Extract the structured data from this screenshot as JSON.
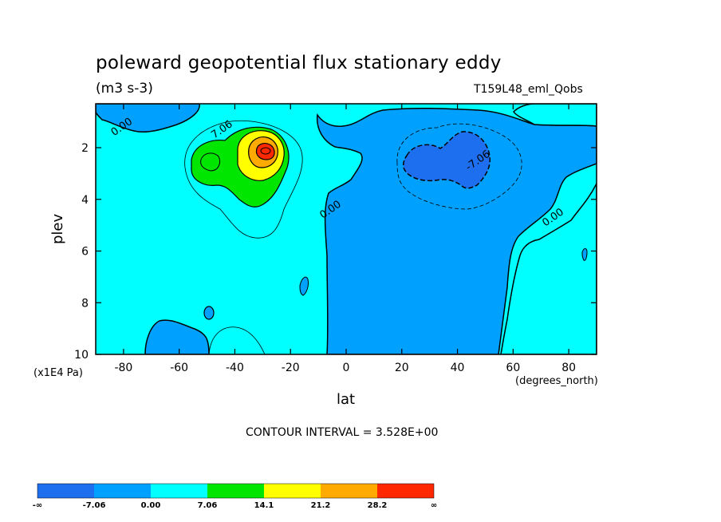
{
  "chart_data": {
    "type": "contour",
    "title": "poleward geopotential flux stationary eddy",
    "units": "(m3 s-3)",
    "run_label": "T159L48_eml_Qobs",
    "xlabel": "lat",
    "ylabel": "plev",
    "x_unit": "(degrees_north)",
    "y_unit": "(x1E4 Pa)",
    "xlim": [
      -90,
      90
    ],
    "ylim": [
      10,
      0.3
    ],
    "x_ticks": [
      -80,
      -60,
      -40,
      -20,
      0,
      20,
      40,
      60,
      80
    ],
    "x_tick_labels": [
      "-80",
      "-60",
      "-40",
      "-20",
      "0",
      "20",
      "40",
      "60",
      "80"
    ],
    "y_ticks": [
      2,
      4,
      6,
      8,
      10
    ],
    "y_tick_labels": [
      "2",
      "4",
      "6",
      "8",
      "10"
    ],
    "contour_interval": "CONTOUR INTERVAL = 3.528E+00",
    "contour_labels": [
      {
        "text": "0.00",
        "x": -80,
        "y": 1.3
      },
      {
        "text": "7.06",
        "x": -44,
        "y": 1.4
      },
      {
        "text": "-7.06",
        "x": 48,
        "y": 2.6
      },
      {
        "text": "0.00",
        "x": -5,
        "y": 4.5
      },
      {
        "text": "0.00",
        "x": 75,
        "y": 4.8
      }
    ],
    "colorbar": {
      "levels": [
        "-∞",
        "-7.06",
        "0.00",
        "7.06",
        "14.1",
        "21.2",
        "28.2",
        "∞"
      ],
      "colors": [
        "#1e6ef0",
        "#00a0ff",
        "#00ffff",
        "#00e600",
        "#ffff00",
        "#ffaa00",
        "#ff2800"
      ]
    },
    "features": [
      {
        "name": "positive maximum",
        "lat": -29,
        "plev": 2.0,
        "level": ">28.2"
      },
      {
        "name": "negative minimum",
        "lat": 40,
        "plev": 2.5,
        "level": "< -7.06"
      }
    ]
  }
}
